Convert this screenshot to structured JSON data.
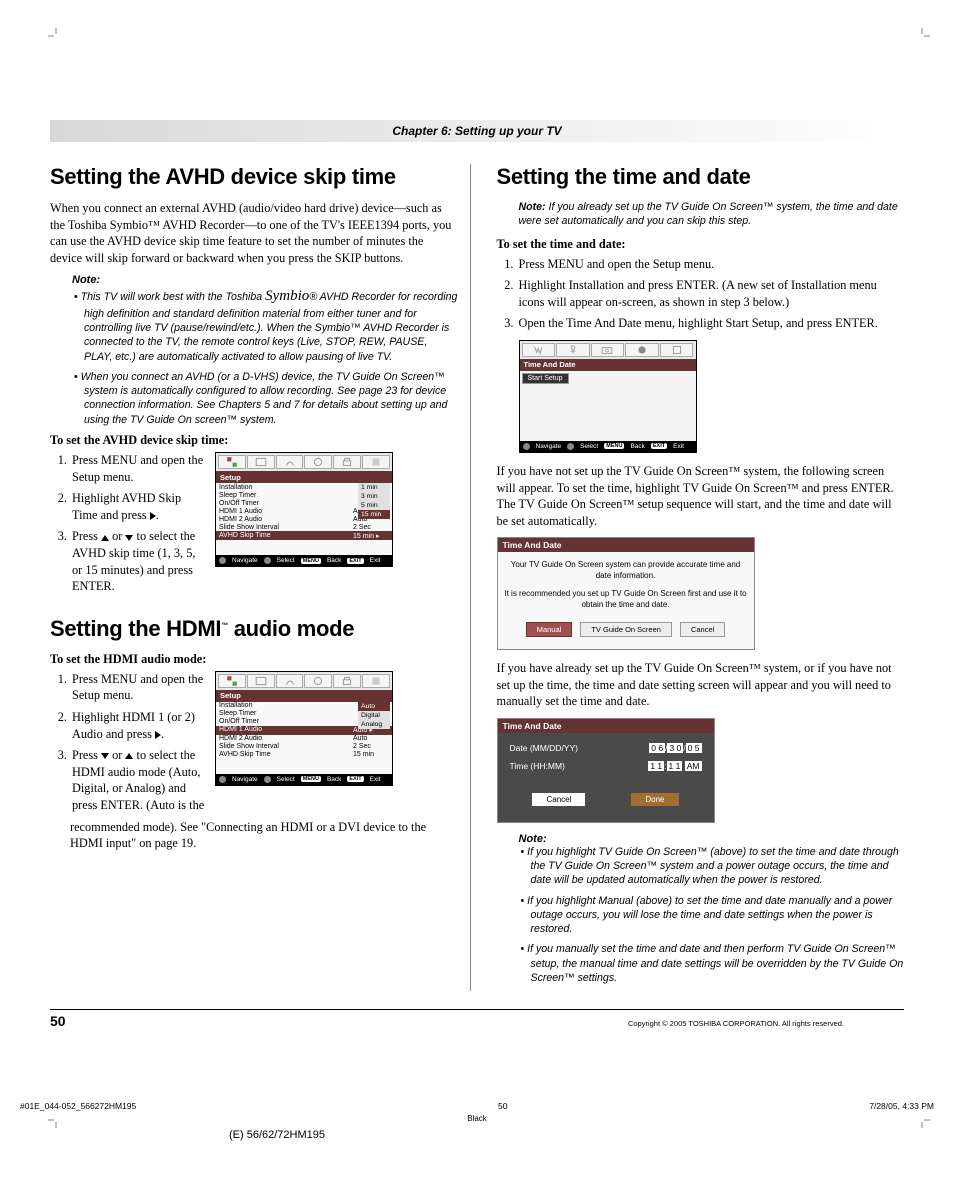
{
  "chapter_header": "Chapter 6: Setting up your TV",
  "left": {
    "h1": "Setting the AVHD device skip time",
    "intro": "When you connect an external AVHD (audio/video hard drive) device—such as the Toshiba Symbio™ AVHD Recorder—to one of the TV's IEEE1394 ports, you can use the AVHD device skip time feature to set the number of minutes the device will skip forward or backward when you press the SKIP buttons.",
    "note_label": "Note:",
    "note1_a": "This TV will work best with the Toshiba ",
    "note1_symbio": "Symbio",
    "note1_b": "® AVHD Recorder for recording high definition and standard definition material from either tuner and for controlling live TV (pause/rewind/etc.). When the Symbio™ AVHD Recorder is connected to the TV, the remote control keys (Live, STOP, REW, PAUSE, PLAY, etc.) are automatically activated to allow pausing of live TV.",
    "note2": "When you connect an AVHD (or a D-VHS) device, the TV Guide On Screen™ system is automatically configured to allow recording. See page 23 for device connection information. See Chapters 5 and 7 for details about setting up and using the TV Guide On screen™ system.",
    "sub1": "To set the AVHD device skip time:",
    "s1": "Press MENU and open the Setup menu.",
    "s2": "Highlight AVHD Skip Time and press ",
    "s3a": "Press ",
    "s3b": " or ",
    "s3c": " to select the AVHD skip time (1, 3, 5, or 15 minutes) and press ENTER.",
    "menu1": {
      "title": "Setup",
      "rows": [
        [
          "Installation",
          ""
        ],
        [
          "Sleep Timer",
          ""
        ],
        [
          "On/Off Timer",
          ""
        ],
        [
          "HDMI 1 Audio",
          "Auto"
        ],
        [
          "HDMI 2 Audio",
          "Auto"
        ],
        [
          "Slide Show Interval",
          "2 Sec"
        ],
        [
          "AVHD Skip Time",
          "15 min ▸"
        ]
      ],
      "hl_index": 6,
      "side": [
        "1 min",
        "3 min",
        "5 min",
        "15 min"
      ],
      "side_hl": 3,
      "footer": {
        "nav": "Navigate",
        "sel": "Select",
        "back": "Back",
        "exit": "Exit",
        "menu_pill": "MENU",
        "exit_pill": "EXIT"
      }
    },
    "h2": "Setting the HDMI™ audio mode",
    "sub2": "To set the HDMI audio mode:",
    "h2_s1": "Press MENU and open the Setup menu.",
    "h2_s2": "Highlight HDMI 1 (or 2) Audio and press ",
    "h2_s3a": "Press ",
    "h2_s3b": " or ",
    "h2_s3c": " to select the HDMI audio mode (Auto, Digital, or Analog) and press ENTER. (Auto is the",
    "h2_after": "recommended mode). See \"Connecting an HDMI or a DVI device to the HDMI input\" on page 19.",
    "menu2": {
      "title": "Setup",
      "rows": [
        [
          "Installation",
          ""
        ],
        [
          "Sleep Timer",
          ""
        ],
        [
          "On/Off Timer",
          ""
        ],
        [
          "HDMI 1 Audio",
          "Auto ▸"
        ],
        [
          "HDMI 2 Audio",
          "Auto"
        ],
        [
          "Slide Show Interval",
          "2 Sec"
        ],
        [
          "AVHD Skip Time",
          "15 min"
        ]
      ],
      "hl_index": 3,
      "side": [
        "Auto",
        "Digital",
        "Analog"
      ],
      "side_hl": 0,
      "footer": {
        "nav": "Navigate",
        "sel": "Select",
        "back": "Back",
        "exit": "Exit",
        "menu_pill": "MENU",
        "exit_pill": "EXIT"
      }
    }
  },
  "right": {
    "h1": "Setting the time and date",
    "note_top_label": "Note:",
    "note_top": " If you already set up the TV Guide On Screen™ system, the time and date were set automatically and you can skip this step.",
    "sub1": "To set the time and date:",
    "s1": "Press MENU and open the Setup menu.",
    "s2": "Highlight Installation and press ENTER. (A new set of Installation menu icons will appear on-screen, as shown in step 3 below.)",
    "s3": "Open the Time And Date menu, highlight Start Setup, and press ENTER.",
    "menu_td": {
      "title": "Time And Date",
      "start_setup": "Start Setup",
      "footer": {
        "nav": "Navigate",
        "sel": "Select",
        "back": "Back",
        "exit": "Exit",
        "menu_pill": "MENU",
        "exit_pill": "EXIT"
      }
    },
    "para1": "If you have not set up the TV Guide On Screen™ system, the following screen will appear. To set the time, highlight TV Guide On Screen™ and press ENTER. The TV Guide On Screen™ setup sequence will start, and the time and date will be set automatically.",
    "dialog": {
      "title": "Time And Date",
      "msg1": "Your TV Guide On Screen system can provide accurate time and date information.",
      "msg2": "It is recommended you set up TV Guide On Screen first and use it to obtain the time and date.",
      "btn_manual": "Manual",
      "btn_tvg": "TV Guide On Screen",
      "btn_cancel": "Cancel"
    },
    "para2": "If you have already set up the TV Guide On Screen™ system, or if you have not set up the time, the time and date setting screen will appear and you will need to manually set the time and date.",
    "dialog2": {
      "title": "Time And Date",
      "date_label": "Date (MM/DD/YY)",
      "date_mm": "0 6",
      "date_dd": "3 0",
      "date_yy": "0 5",
      "time_label": "Time (HH:MM)",
      "time_hh": "1 1",
      "time_mm": "1 1",
      "time_ampm": "AM",
      "btn_cancel": "Cancel",
      "btn_done": "Done"
    },
    "note_bottom_label": "Note:",
    "nb1": "If you highlight TV Guide On Screen™ (above) to set the time and date through the TV Guide On Screen™ system and a power outage occurs, the time and date will be updated automatically when the power is restored.",
    "nb2": "If you highlight Manual (above) to set the time and date manually and a power outage occurs, you will lose the time and date settings when the power is restored.",
    "nb3": "If you manually set the time and date and then perform TV Guide On Screen™ setup, the manual time and date settings will be overridden by the TV Guide On Screen™ settings."
  },
  "footer": {
    "page_num": "50",
    "copyright": "Copyright © 2005 TOSHIBA CORPORATION. All rights reserved.",
    "print_id": "#01E_044-052_566272HM195",
    "print_page": "50",
    "print_date": "7/28/05, 4:33 PM",
    "black": "Black",
    "model": "(E) 56/62/72HM195"
  }
}
